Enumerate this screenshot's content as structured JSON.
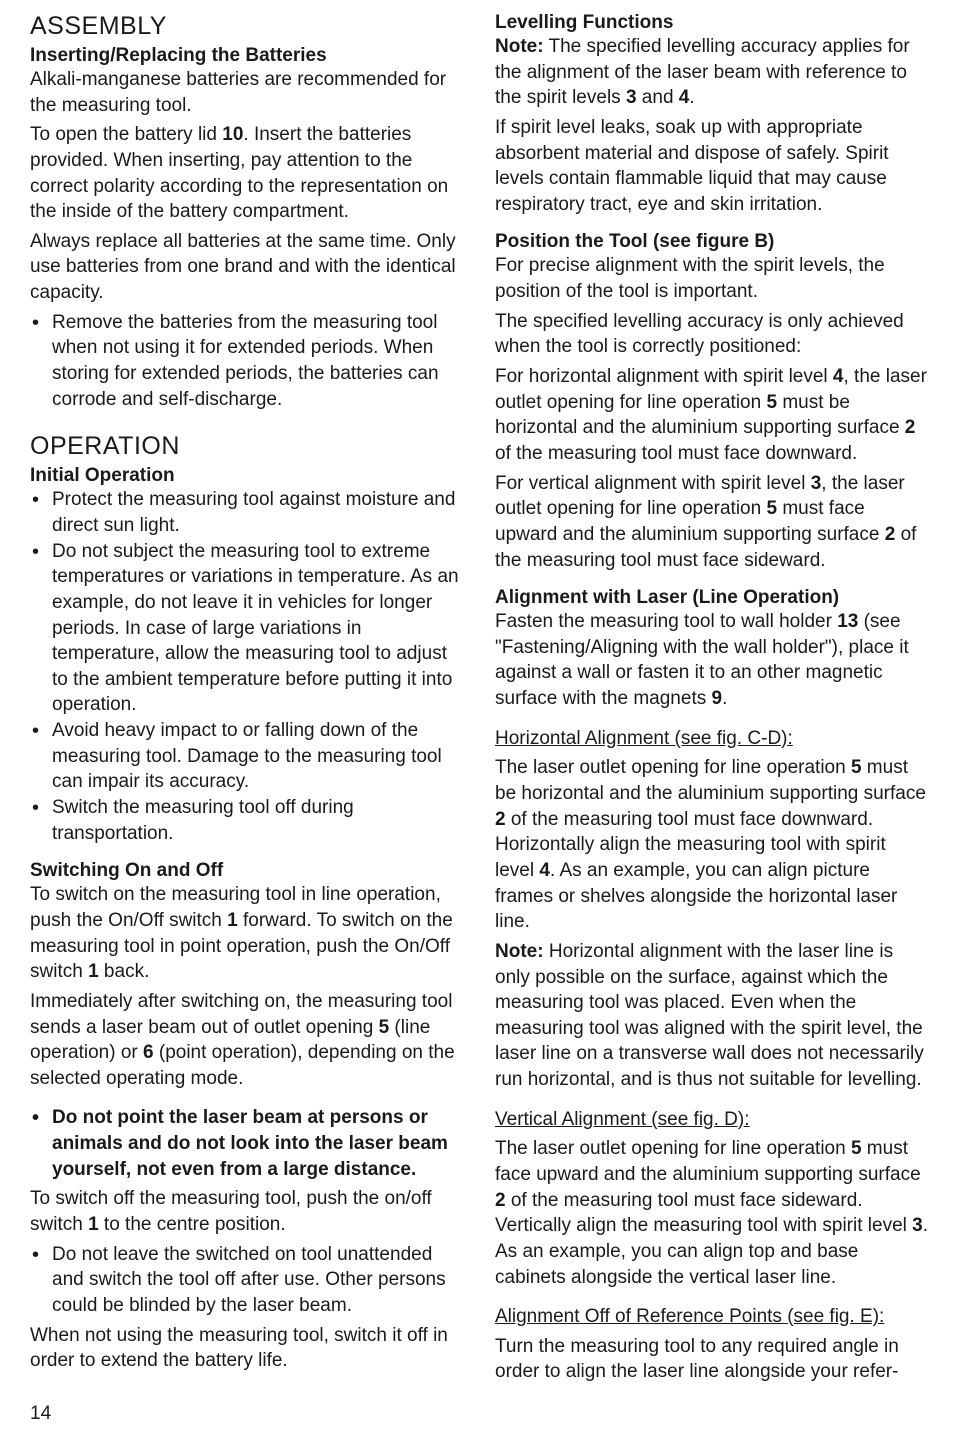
{
  "left": {
    "h1_assembly": "ASSEMBLY",
    "h2_insert": "Inserting/Replacing the Batteries",
    "p1_a": "Alkali-manganese batteries are recommended for the measuring tool.",
    "p1_b_pre": "To open the battery lid ",
    "p1_b_num": "10",
    "p1_b_post": ". Insert the batteries provided. When inserting, pay attention to the correct polarity according to the representation on the inside of the battery compartment.",
    "p1_c": "Always replace all batteries at the same time. Only use batteries from one brand and with the identical capacity.",
    "li_remove": "Remove the batteries from the measuring tool when not using it for extended periods. When storing for extended periods, the batteries can corrode and self-discharge.",
    "h1_operation": "OPERATION",
    "h2_initial": "Initial Operation",
    "li_protect": "Protect the measuring tool against moisture and direct sun light.",
    "li_temp": "Do not subject the measuring tool to extreme temperatures or variations in temperature. As an example, do not leave it in vehicles for longer periods. In case of large variations in temperature, allow the measuring tool to adjust to the ambient temperature before putting it into operation.",
    "li_impact": "Avoid heavy impact to or falling down of the measuring tool. Damage to the measuring tool can impair its accuracy.",
    "li_transport": "Switch the measuring tool off during transportation.",
    "h2_switching": "Switching On and Off",
    "p_switch_a": "To switch on the measuring tool in line operation, push the On/Off switch ",
    "p_switch_b": "1",
    "p_switch_c": " forward. To switch on the measuring tool in point operation, push the On/Off switch ",
    "p_switch_d": "1",
    "p_switch_e": " back.",
    "p_beam_a": "Immediately after switching on, the measuring tool sends a laser beam out of outlet opening ",
    "p_beam_b": "5",
    "p_beam_c": " (line operation) or ",
    "p_beam_d": "6",
    "p_beam_e": " (point operation), depending on the selected operating mode.",
    "li_warn": "Do not point the laser beam at persons or animals and do not look into the laser beam yourself, not even from a large distance.",
    "p_off_a": "To switch off the measuring tool, push the on/off switch ",
    "p_off_b": "1",
    "p_off_c": " to the centre position.",
    "li_unattend": "Do not leave the switched on tool unattended and switch the tool off after use. Other persons could be blinded by the laser beam.",
    "p_save": "When not using the measuring tool, switch it off in order to extend the battery life."
  },
  "right": {
    "h2_level": "Levelling Functions",
    "note_label": "Note:",
    "p_note_a": " The specified levelling accuracy applies for the alignment of the laser beam with reference to the spirit levels ",
    "p_note_b": "3",
    "p_note_c": " and ",
    "p_note_d": "4",
    "p_note_e": ".",
    "p_leak": "If spirit level leaks, soak up with appropriate absorbent material and dispose of safely. Spirit levels contain flammable liquid that may cause respiratory tract, eye and skin irritation.",
    "h2_pos": "Position the Tool (see figure B)",
    "p_pos1": "For precise alignment with the spirit levels, the position of the tool is important.",
    "p_pos2": "The specified levelling accuracy is only achieved when the tool is correctly positioned:",
    "p_horiz_a": "For horizontal alignment with spirit level ",
    "p_horiz_b": "4",
    "p_horiz_c": ", the laser outlet opening for line operation ",
    "p_horiz_d": "5",
    "p_horiz_e": " must be horizontal and the aluminium supporting surface ",
    "p_horiz_f": "2",
    "p_horiz_g": " of the measuring tool must face downward.",
    "p_vert_a": "For vertical alignment with spirit level ",
    "p_vert_b": "3",
    "p_vert_c": ", the laser outlet opening for line operation ",
    "p_vert_d": "5",
    "p_vert_e": " must face upward and the aluminium supporting surface ",
    "p_vert_f": "2",
    "p_vert_g": " of the measuring tool must face sideward.",
    "h2_align": "Alignment with Laser (Line Operation)",
    "p_fasten_a": "Fasten the measuring tool to wall holder ",
    "p_fasten_b": "13",
    "p_fasten_c": " (see \"Fastening/Aligning with the wall holder\"), place it against a wall or fasten it to an other magnetic surface with the magnets ",
    "p_fasten_d": "9",
    "p_fasten_e": ".",
    "u_horiz": "Horizontal Alignment (see fig. C-D):",
    "p_halign_a": "The laser outlet opening for line operation ",
    "p_halign_b": "5",
    "p_halign_c": " must be horizontal and the aluminium supporting surface ",
    "p_halign_d": "2",
    "p_halign_e": " of the measuring tool must face downward. Horizontally align the measuring tool with spirit level ",
    "p_halign_f": "4",
    "p_halign_g": ". As an example, you can align picture frames or shelves alongside the horizontal laser line.",
    "p_halign_note": " Horizontal alignment with the laser line is only possible on the surface, against which the measuring tool was placed. Even when the measuring tool was aligned with the spirit level, the laser line on a transverse wall does not necessarily run horizontal, and is thus not suitable for levelling.",
    "u_vert": "Vertical Alignment (see fig. D):",
    "p_valign_a": "The laser outlet opening for line operation ",
    "p_valign_b": "5",
    "p_valign_c": " must face upward and the aluminium supporting surface ",
    "p_valign_d": "2",
    "p_valign_e": " of the measuring tool must face sideward. Vertically align the measuring tool with spirit level ",
    "p_valign_f": "3",
    "p_valign_g": ". As an example, you can align top and base cabinets alongside the vertical laser line.",
    "u_ref": "Alignment Off of Reference Points (see fig. E):",
    "p_ref": "Turn the measuring tool to any required angle in order to align the laser line alongside your refer-"
  },
  "page_number": "14"
}
